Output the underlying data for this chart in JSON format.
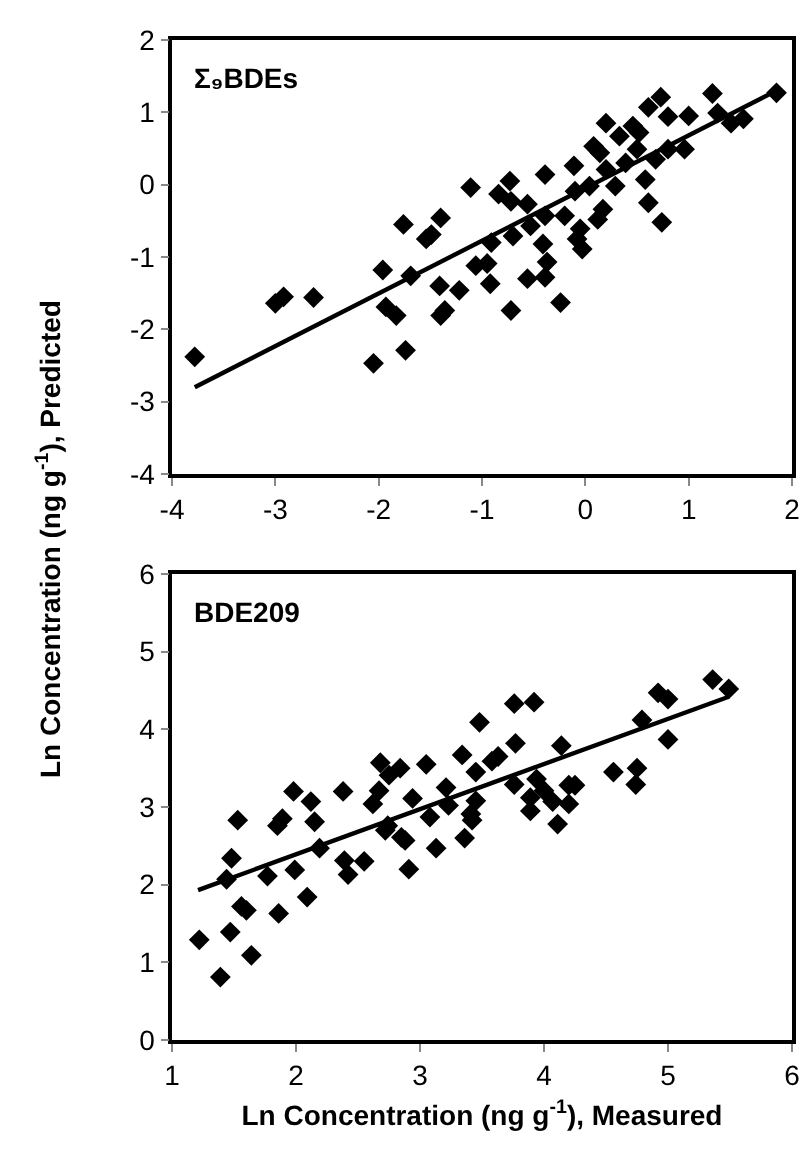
{
  "chart_data": [
    {
      "type": "scatter",
      "title": "Σ₉BDEs",
      "ylabel": "Ln Concentration (ng g$^{-1}$), Predicted",
      "xlim": [
        -4,
        2
      ],
      "ylim": [
        -4,
        2
      ],
      "xticks": [
        -4,
        -3,
        -2,
        -1,
        0,
        1,
        2
      ],
      "yticks": [
        -4,
        -3,
        -2,
        -1,
        0,
        1,
        2
      ],
      "series": [
        {
          "marker": "diamond",
          "color": "#000000",
          "x": [
            -3.78,
            -3.0,
            -2.92,
            -2.63,
            -2.05,
            -1.96,
            -1.93,
            -1.83,
            -1.74,
            -1.76,
            -1.69,
            -1.54,
            -1.49,
            -1.4,
            -1.41,
            -1.4,
            -1.36,
            -1.22,
            -1.11,
            -1.06,
            -0.95,
            -0.92,
            -0.91,
            -0.84,
            -0.73,
            -0.72,
            -0.72,
            -0.7,
            -0.56,
            -0.53,
            -0.56,
            -0.41,
            -0.39,
            -0.39,
            -0.37,
            -0.39,
            -0.24,
            -0.2,
            -0.11,
            -0.1,
            -0.05,
            -0.08,
            -0.03,
            0.08,
            0.14,
            0.04,
            0.17,
            0.12,
            0.2,
            0.29,
            0.33,
            0.39,
            0.46,
            0.5,
            0.52,
            0.58,
            0.61,
            0.68,
            0.74,
            0.8,
            0.96,
            0.73,
            1.23,
            1.28,
            1.41,
            1.53,
            1.85,
            0.8,
            0.2,
            0.61,
            1.0
          ],
          "values": [
            -2.38,
            -1.64,
            -1.55,
            -1.56,
            -2.47,
            -1.18,
            -1.69,
            -1.81,
            -2.29,
            -0.55,
            -1.26,
            -0.75,
            -0.69,
            -0.46,
            -1.4,
            -1.81,
            -1.74,
            -1.46,
            -0.04,
            -1.12,
            -1.09,
            -1.37,
            -0.8,
            -0.13,
            0.05,
            -0.23,
            -1.74,
            -0.71,
            -1.3,
            -0.57,
            -0.27,
            -0.82,
            0.14,
            -0.43,
            -1.07,
            -1.28,
            -1.63,
            -0.43,
            0.26,
            -0.09,
            -0.61,
            -0.75,
            -0.89,
            0.53,
            0.44,
            -0.02,
            -0.34,
            -0.48,
            0.21,
            -0.02,
            0.67,
            0.3,
            0.81,
            0.49,
            0.72,
            0.07,
            -0.25,
            0.35,
            -0.52,
            0.49,
            0.49,
            1.21,
            1.26,
            0.99,
            0.85,
            0.91,
            1.27,
            0.94,
            0.85,
            1.07,
            0.95
          ]
        },
        {
          "type": "line",
          "color": "#000000",
          "x": [
            -3.78,
            1.85
          ],
          "values": [
            -2.8,
            1.3
          ]
        }
      ]
    },
    {
      "type": "scatter",
      "title": "BDE209",
      "xlabel": "Ln Concentration (ng g$^{-1}$), Measured",
      "xlim": [
        1,
        6
      ],
      "ylim": [
        0,
        6
      ],
      "xticks": [
        1,
        2,
        3,
        4,
        5,
        6
      ],
      "yticks": [
        0,
        1,
        2,
        3,
        4,
        5,
        6
      ],
      "series": [
        {
          "marker": "diamond",
          "color": "#000000",
          "x": [
            1.22,
            1.39,
            1.47,
            1.44,
            1.48,
            1.53,
            1.56,
            1.6,
            1.64,
            1.77,
            1.86,
            1.85,
            1.89,
            1.98,
            1.99,
            2.09,
            2.12,
            2.15,
            2.19,
            2.38,
            2.39,
            2.42,
            2.55,
            2.62,
            2.67,
            2.68,
            2.74,
            2.72,
            2.75,
            2.84,
            2.85,
            2.88,
            2.91,
            2.94,
            3.05,
            3.08,
            3.13,
            3.21,
            3.23,
            3.34,
            3.36,
            3.41,
            3.45,
            3.48,
            3.45,
            3.42,
            3.58,
            3.63,
            3.76,
            3.92,
            3.77,
            3.76,
            3.89,
            3.89,
            3.94,
            4.0,
            4.07,
            4.11,
            4.14,
            4.2,
            4.2,
            4.25,
            4.56,
            4.74,
            4.75,
            4.79,
            4.92,
            5.0,
            5.0,
            5.36,
            5.49
          ],
          "values": [
            1.29,
            0.81,
            1.39,
            2.07,
            2.34,
            2.83,
            1.72,
            1.67,
            1.09,
            2.11,
            1.63,
            2.76,
            2.85,
            3.2,
            2.19,
            1.84,
            3.07,
            2.81,
            2.47,
            3.2,
            2.31,
            2.13,
            2.3,
            3.04,
            3.21,
            3.57,
            2.76,
            2.7,
            3.41,
            3.5,
            2.61,
            2.57,
            2.2,
            3.11,
            3.55,
            2.87,
            2.47,
            3.25,
            3.02,
            3.67,
            2.6,
            2.91,
            3.45,
            4.09,
            3.08,
            2.83,
            3.59,
            3.65,
            4.33,
            4.35,
            3.82,
            3.29,
            3.12,
            2.95,
            3.36,
            3.21,
            3.07,
            2.78,
            3.79,
            3.04,
            3.28,
            3.28,
            3.45,
            3.29,
            3.5,
            4.12,
            4.47,
            4.39,
            3.87,
            4.64,
            4.52
          ]
        },
        {
          "type": "line",
          "color": "#000000",
          "x": [
            1.21,
            5.49
          ],
          "values": [
            1.93,
            4.42
          ]
        }
      ]
    }
  ]
}
